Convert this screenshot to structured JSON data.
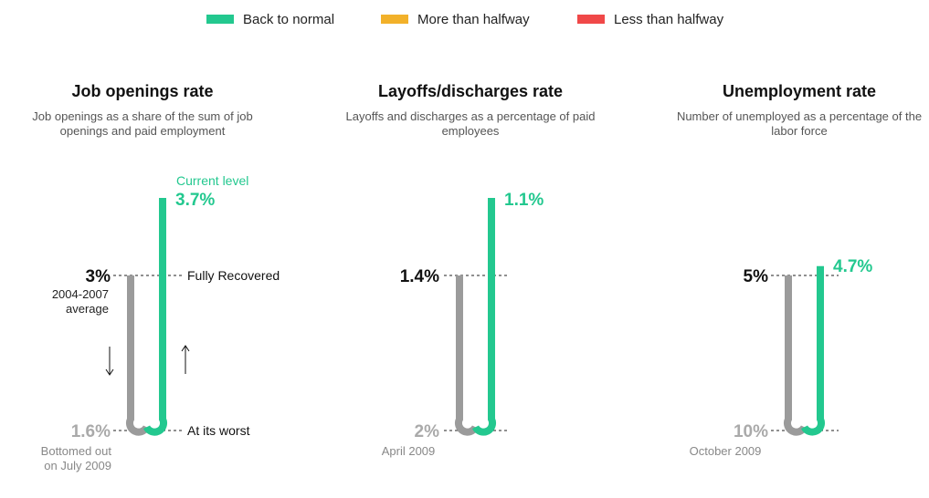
{
  "legend": [
    {
      "label": "Back to normal",
      "color": "#23c88f"
    },
    {
      "label": "More than halfway",
      "color": "#f2b12a"
    },
    {
      "label": "Less than halfway",
      "color": "#f04848"
    }
  ],
  "colors": {
    "gray": "#9b9b9b",
    "green": "#23c88f"
  },
  "chart_data": [
    {
      "type": "bar",
      "title": "Job openings rate",
      "subtitle": "Job openings as a share of the sum of job openings and paid employment",
      "recovery_status": "Back to normal",
      "inverted": false,
      "worst": {
        "value": 1.6,
        "label": "1.6%",
        "note": "Bottomed out on July 2009"
      },
      "normal": {
        "value": 3.0,
        "label": "3%",
        "note": "2004-2007 average"
      },
      "current": {
        "value": 3.7,
        "label": "3.7%",
        "note": "Current level"
      },
      "annotations": {
        "normal_line": "Fully Recovered",
        "worst_line": "At its worst"
      }
    },
    {
      "type": "bar",
      "title": "Layoffs/discharges rate",
      "subtitle": "Layoffs and discharges as a percentage of paid employees",
      "recovery_status": "Back to normal",
      "inverted": true,
      "worst": {
        "value": 2.0,
        "label": "2%",
        "note": "April 2009"
      },
      "normal": {
        "value": 1.4,
        "label": "1.4%"
      },
      "current": {
        "value": 1.1,
        "label": "1.1%"
      }
    },
    {
      "type": "bar",
      "title": "Unemployment rate",
      "subtitle": "Number of unemployed as a percentage of the labor force",
      "recovery_status": "Back to normal",
      "inverted": true,
      "worst": {
        "value": 10,
        "label": "10%",
        "note": "October 2009"
      },
      "normal": {
        "value": 5,
        "label": "5%"
      },
      "current": {
        "value": 4.7,
        "label": "4.7%"
      }
    }
  ]
}
